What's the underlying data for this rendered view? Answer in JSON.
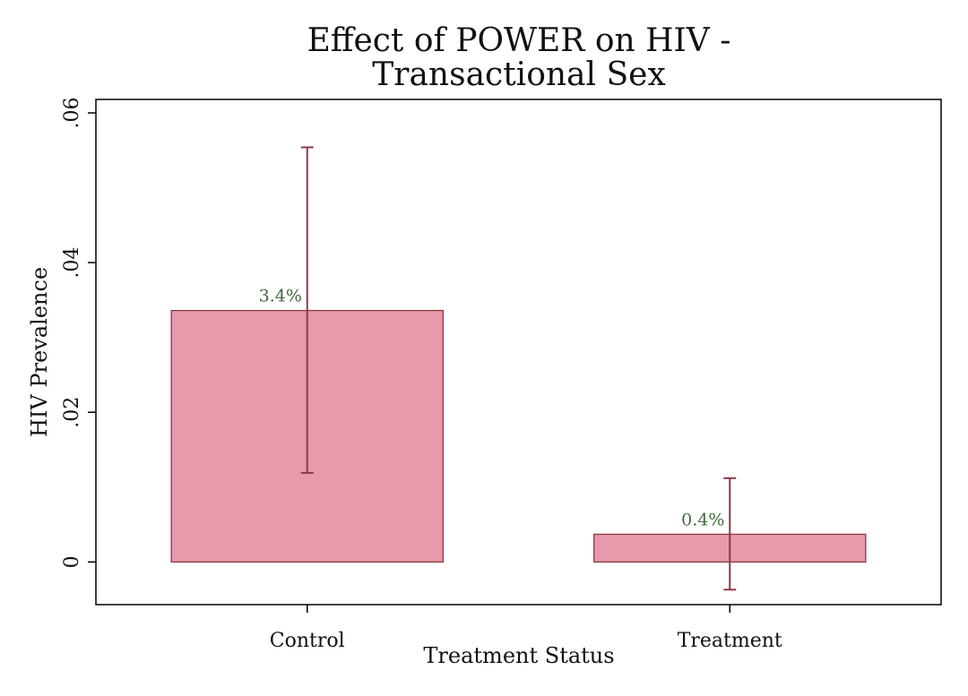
{
  "chart_data": {
    "type": "bar",
    "title_lines": [
      "Effect of POWER on HIV -",
      "Transactional Sex"
    ],
    "xlabel": "Treatment Status",
    "ylabel": "HIV Prevalence",
    "categories": [
      "Control",
      "Treatment"
    ],
    "values": [
      0.0336,
      0.0037
    ],
    "value_labels": [
      "3.4%",
      "0.4%"
    ],
    "ci_low": [
      0.0119,
      -0.0037
    ],
    "ci_high": [
      0.0554,
      0.0112
    ],
    "ylim": [
      -0.0057,
      0.0618
    ],
    "yticks": [
      0,
      0.02,
      0.04,
      0.06
    ],
    "ytick_labels": [
      "0",
      ".02",
      ".04",
      ".06"
    ],
    "grid": false,
    "legend": "none",
    "colors": {
      "bar_fill": "#e79aab",
      "bar_stroke": "#8c3a45",
      "error_bar": "#8c3a45",
      "label": "#3f6b3a"
    }
  }
}
